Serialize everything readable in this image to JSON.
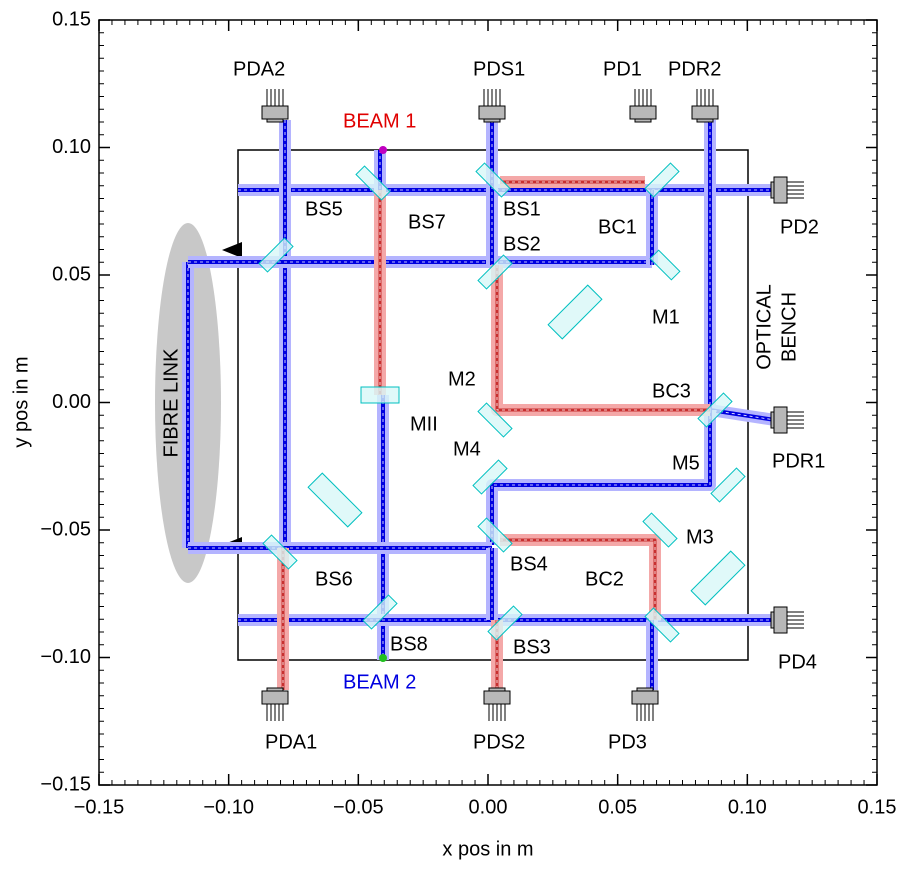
{
  "axes": {
    "xlabel": "x pos in m",
    "ylabel": "y pos in m",
    "xlim": [
      -0.15,
      0.15
    ],
    "ylim": [
      -0.15,
      0.15
    ],
    "xticks": [
      {
        "value": -0.15,
        "label": "−0.15"
      },
      {
        "value": -0.1,
        "label": "−0.10"
      },
      {
        "value": -0.05,
        "label": "−0.05"
      },
      {
        "value": 0,
        "label": "0.00"
      },
      {
        "value": 0.05,
        "label": "0.05"
      },
      {
        "value": 0.1,
        "label": "0.10"
      },
      {
        "value": 0.15,
        "label": "0.15"
      }
    ],
    "yticks": [
      {
        "value": -0.15,
        "label": "−0.15"
      },
      {
        "value": -0.1,
        "label": "−0.10"
      },
      {
        "value": -0.05,
        "label": "−0.05"
      },
      {
        "value": 0,
        "label": "0.00"
      },
      {
        "value": 0.05,
        "label": "0.05"
      },
      {
        "value": 0.1,
        "label": "0.10"
      },
      {
        "value": 0.15,
        "label": "0.15"
      }
    ]
  },
  "labels": {
    "beam1": "BEAM 1",
    "beam2": "BEAM 2",
    "fibre": "FIBRE LINK",
    "bench": [
      "OPTICAL",
      "BENCH"
    ],
    "components": [
      "PDA2",
      "PDS1",
      "PD1",
      "PDR2",
      "BS7",
      "BS1",
      "BS5",
      "BS2",
      "BC1",
      "PD2",
      "M1",
      "M2",
      "BC3",
      "MII",
      "M4",
      "PDR1",
      "M5",
      "M3",
      "BS6",
      "BS4",
      "BC2",
      "BS8",
      "BS3",
      "PD4",
      "PDA1",
      "PDS2",
      "PD3"
    ]
  }
}
